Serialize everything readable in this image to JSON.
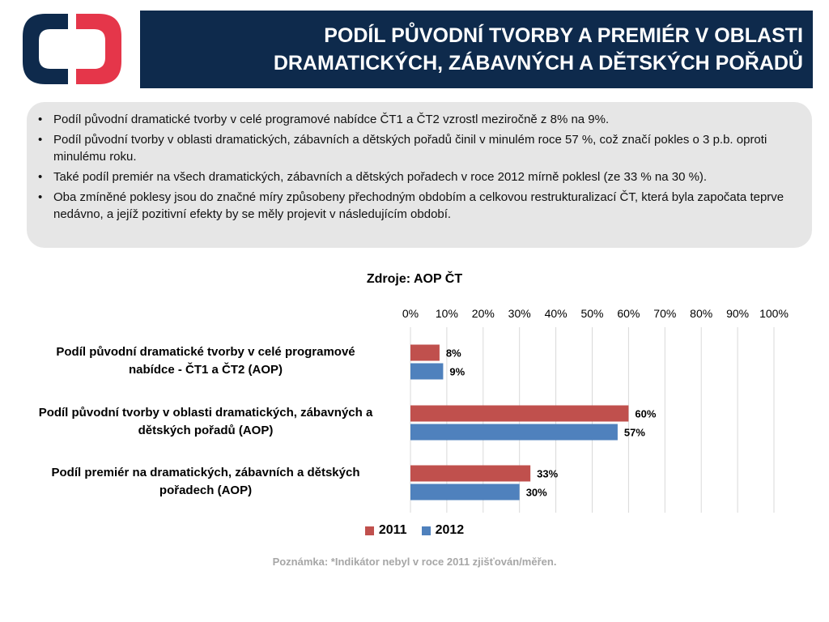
{
  "header": {
    "title_line1": "PODÍL PŮVODNÍ TVORBY A PREMIÉR V OBLASTI",
    "title_line2": "DRAMATICKÝCH, ZÁBAVNÝCH A DĚTSKÝCH POŘADŮ"
  },
  "logo": {
    "icon": "ct-logo-icon",
    "color_navy": "#0e2a4c",
    "color_red": "#e5364a"
  },
  "bullets": [
    "Podíl původní dramatické tvorby v celé programové nabídce ČT1 a ČT2 vzrostl meziročně z 8% na 9%.",
    "Podíl původní tvorby v oblasti dramatických, zábavních a dětských pořadů činil v minulém roce 57 %, což značí pokles o 3 p.b. oproti minulému roku.",
    "Také podíl premiér na všech dramatických, zábavních a dětských pořadech v roce 2012 mírně poklesl (ze 33 % na 30 %).",
    "Oba zmíněné poklesy jsou do značné míry způsobeny přechodným obdobím a celkovou restrukturalizací ČT, která byla započata teprve nedávno, a jejíž pozitivní efekty by se měly projevit v následujícím období."
  ],
  "chart_data": {
    "type": "bar",
    "orientation": "horizontal",
    "title": "Zdroje: AOP ČT",
    "categories": [
      "Podíl původní dramatické tvorby v celé programové nabídce -  ČT1 a ČT2 (AOP)",
      "Podíl původní tvorby v oblasti dramatických, zábavných a dětských pořadů (AOP)",
      "Podíl premiér na dramatických, zábavních a dětských pořadech  (AOP)"
    ],
    "category_lines": [
      [
        "Podíl původní dramatické tvorby v celé programové",
        "nabídce -  ČT1 a ČT2 (AOP)"
      ],
      [
        "Podíl původní tvorby v oblasti dramatických, zábavných a",
        "dětských pořadů (AOP)"
      ],
      [
        "Podíl premiér na dramatických, zábavních a dětských",
        "pořadech  (AOP)"
      ]
    ],
    "series": [
      {
        "name": "2011",
        "values": [
          8,
          60,
          33
        ],
        "labels": [
          "8%",
          "60%",
          "33%"
        ],
        "color": "#c0504d"
      },
      {
        "name": "2012",
        "values": [
          9,
          57,
          30
        ],
        "labels": [
          "9%",
          "57%",
          "30%"
        ],
        "color": "#4f81bd"
      }
    ],
    "xlim": [
      0,
      100
    ],
    "ticks": [
      "0%",
      "10%",
      "20%",
      "30%",
      "40%",
      "50%",
      "60%",
      "70%",
      "80%",
      "90%",
      "100%"
    ],
    "grid": true,
    "legend_position": "bottom",
    "xlabel": "",
    "ylabel": ""
  },
  "note": "Poznámka: *Indikátor nebyl v roce 2011 zjišťován/měřen."
}
